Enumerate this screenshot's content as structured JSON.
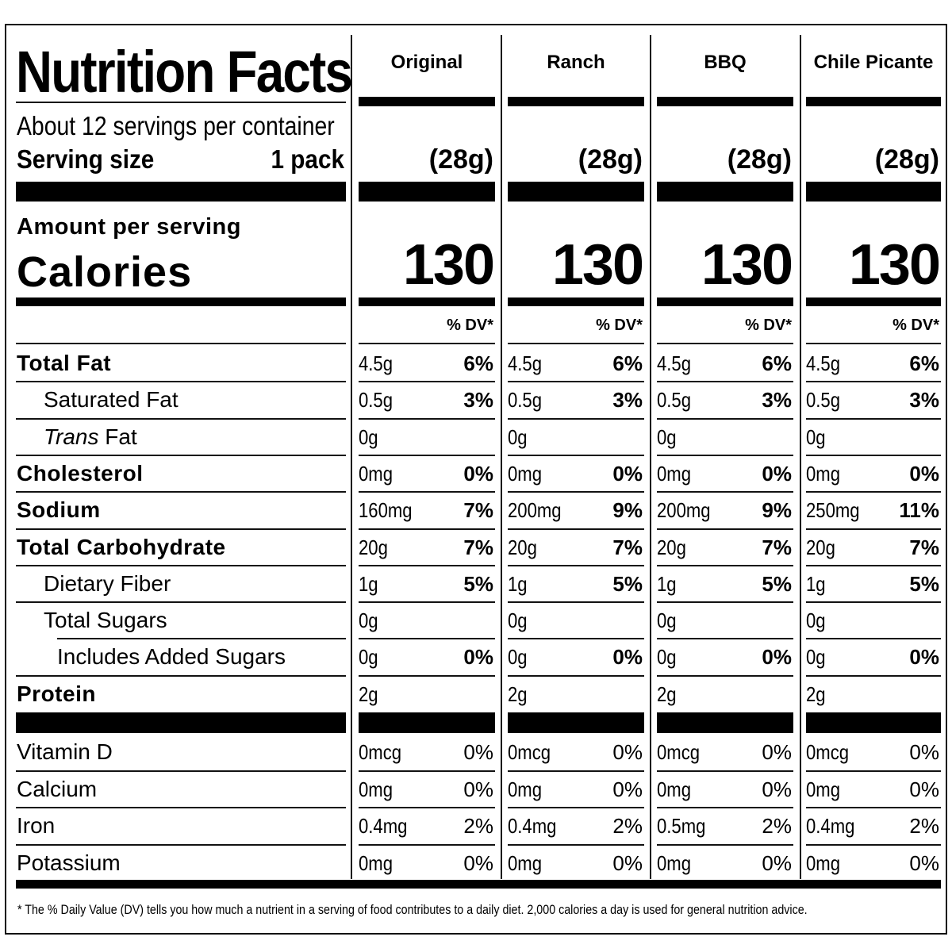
{
  "label": {
    "title": "Nutrition Facts",
    "servings_per_container": "About 12 servings per container",
    "serving_size_label": "Serving size",
    "serving_size_value": "1 pack",
    "amount_per_serving": "Amount per serving",
    "calories_label": "Calories",
    "dv_header": "% DV*",
    "footnote": "* The % Daily Value (DV) tells you how much a nutrient in a serving of food contributes to a daily diet. 2,000 calories a day is used for general nutrition advice."
  },
  "varieties": [
    {
      "name": "Original",
      "serving_weight": "(28g)",
      "calories": "130"
    },
    {
      "name": "Ranch",
      "serving_weight": "(28g)",
      "calories": "130"
    },
    {
      "name": "BBQ",
      "serving_weight": "(28g)",
      "calories": "130"
    },
    {
      "name": "Chile Picante",
      "serving_weight": "(28g)",
      "calories": "130"
    }
  ],
  "nutrients": [
    {
      "label": "Total Fat",
      "values": [
        [
          "4.5g",
          "6%"
        ],
        [
          "4.5g",
          "6%"
        ],
        [
          "4.5g",
          "6%"
        ],
        [
          "4.5g",
          "6%"
        ]
      ]
    },
    {
      "label": "Saturated Fat",
      "values": [
        [
          "0.5g",
          "3%"
        ],
        [
          "0.5g",
          "3%"
        ],
        [
          "0.5g",
          "3%"
        ],
        [
          "0.5g",
          "3%"
        ]
      ]
    },
    {
      "label_italic": "Trans",
      "label_rest": " Fat",
      "values": [
        [
          "0g",
          ""
        ],
        [
          "0g",
          ""
        ],
        [
          "0g",
          ""
        ],
        [
          "0g",
          ""
        ]
      ]
    },
    {
      "label": "Cholesterol",
      "values": [
        [
          "0mg",
          "0%"
        ],
        [
          "0mg",
          "0%"
        ],
        [
          "0mg",
          "0%"
        ],
        [
          "0mg",
          "0%"
        ]
      ]
    },
    {
      "label": "Sodium",
      "values": [
        [
          "160mg",
          "7%"
        ],
        [
          "200mg",
          "9%"
        ],
        [
          "200mg",
          "9%"
        ],
        [
          "250mg",
          "11%"
        ]
      ]
    },
    {
      "label": "Total Carbohydrate",
      "values": [
        [
          "20g",
          "7%"
        ],
        [
          "20g",
          "7%"
        ],
        [
          "20g",
          "7%"
        ],
        [
          "20g",
          "7%"
        ]
      ]
    },
    {
      "label": "Dietary Fiber",
      "values": [
        [
          "1g",
          "5%"
        ],
        [
          "1g",
          "5%"
        ],
        [
          "1g",
          "5%"
        ],
        [
          "1g",
          "5%"
        ]
      ]
    },
    {
      "label": "Total Sugars",
      "values": [
        [
          "0g",
          ""
        ],
        [
          "0g",
          ""
        ],
        [
          "0g",
          ""
        ],
        [
          "0g",
          ""
        ]
      ]
    },
    {
      "label": "Includes Added Sugars",
      "values": [
        [
          "0g",
          "0%"
        ],
        [
          "0g",
          "0%"
        ],
        [
          "0g",
          "0%"
        ],
        [
          "0g",
          "0%"
        ]
      ]
    },
    {
      "label": "Protein",
      "values": [
        [
          "2g",
          ""
        ],
        [
          "2g",
          ""
        ],
        [
          "2g",
          ""
        ],
        [
          "2g",
          ""
        ]
      ]
    }
  ],
  "vitamins": [
    {
      "label": "Vitamin D",
      "values": [
        [
          "0mcg",
          "0%"
        ],
        [
          "0mcg",
          "0%"
        ],
        [
          "0mcg",
          "0%"
        ],
        [
          "0mcg",
          "0%"
        ]
      ]
    },
    {
      "label": "Calcium",
      "values": [
        [
          "0mg",
          "0%"
        ],
        [
          "0mg",
          "0%"
        ],
        [
          "0mg",
          "0%"
        ],
        [
          "0mg",
          "0%"
        ]
      ]
    },
    {
      "label": "Iron",
      "values": [
        [
          "0.4mg",
          "2%"
        ],
        [
          "0.4mg",
          "2%"
        ],
        [
          "0.5mg",
          "2%"
        ],
        [
          "0.4mg",
          "2%"
        ]
      ]
    },
    {
      "label": "Potassium",
      "values": [
        [
          "0mg",
          "0%"
        ],
        [
          "0mg",
          "0%"
        ],
        [
          "0mg",
          "0%"
        ],
        [
          "0mg",
          "0%"
        ]
      ]
    }
  ]
}
